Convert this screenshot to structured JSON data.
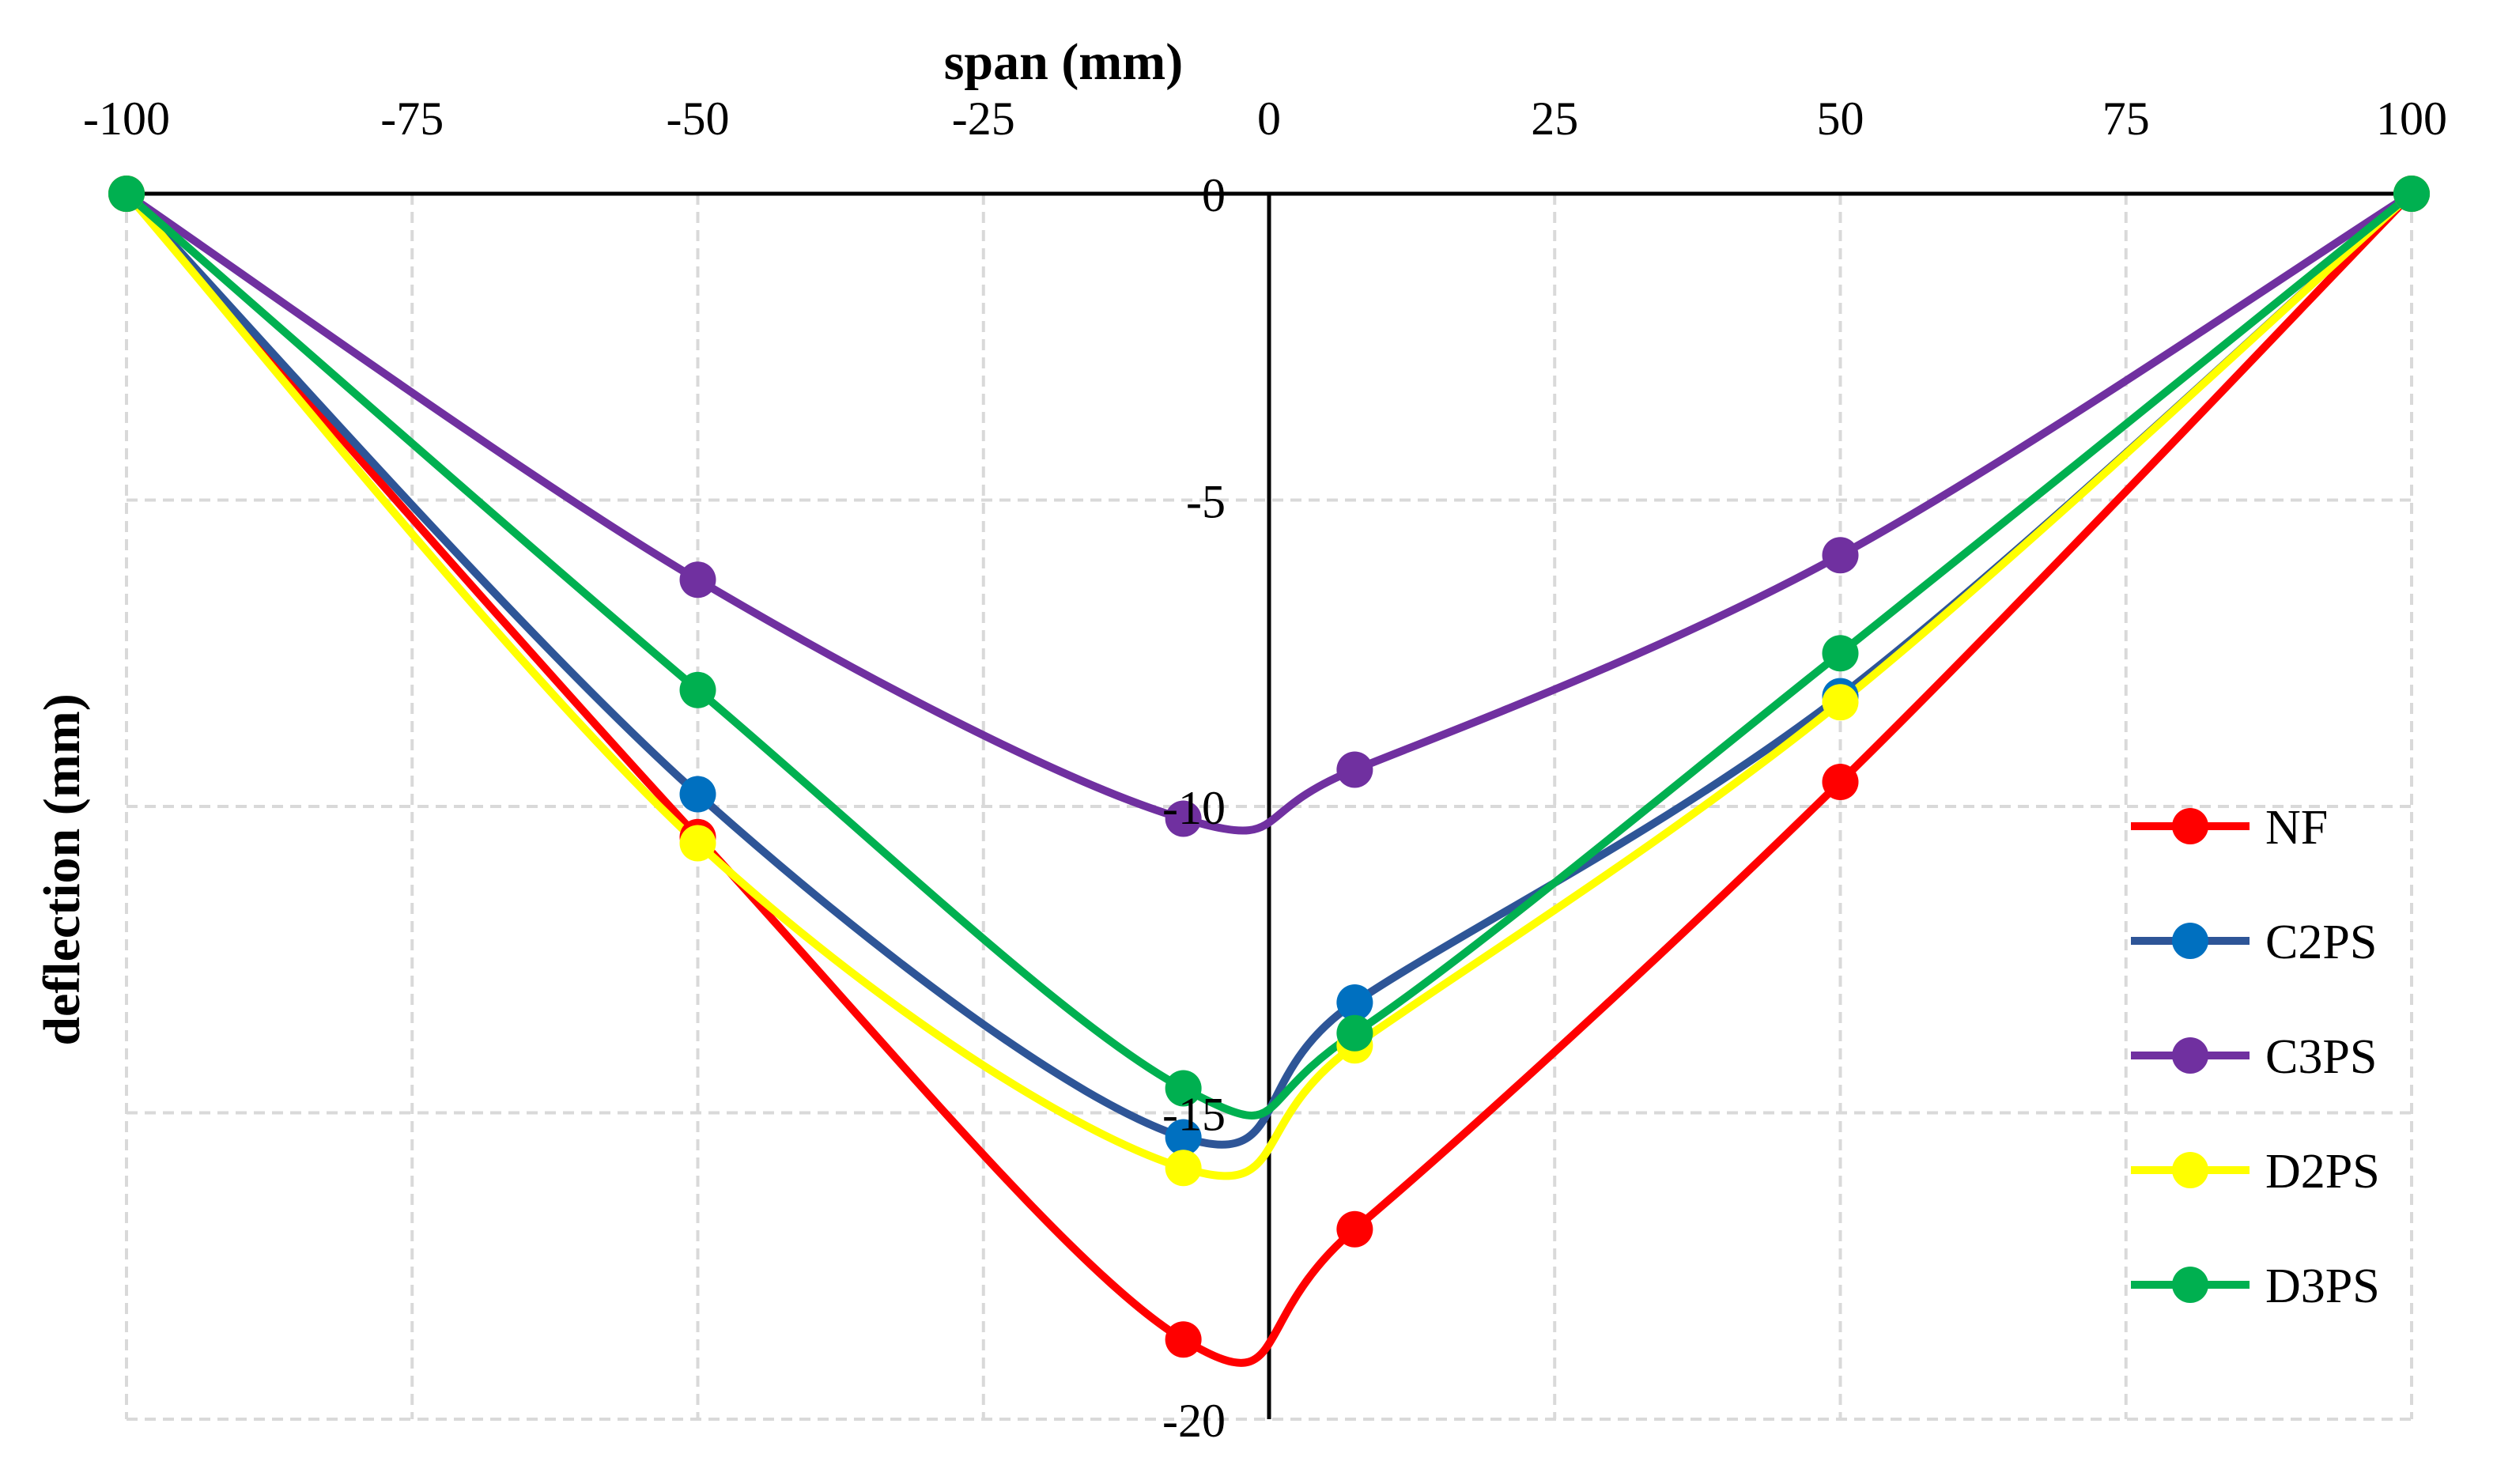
{
  "chart_data": {
    "type": "line",
    "title": "",
    "xlabel": "span (mm)",
    "ylabel": "deflection (mm)",
    "xlim": [
      -100,
      100
    ],
    "ylim": [
      -20,
      0
    ],
    "xticks": [
      -100,
      -75,
      -50,
      -25,
      0,
      25,
      50,
      75,
      100
    ],
    "yticks": [
      0,
      -5,
      -10,
      -15,
      -20
    ],
    "xtick_labels": [
      "-100",
      "-75",
      "-50",
      "-25",
      "0",
      "25",
      "50",
      "75",
      "100"
    ],
    "ytick_labels": [
      "0",
      "-5",
      "-10",
      "-15",
      "-20"
    ],
    "grid": true,
    "legend_position": "right",
    "x": [
      -100,
      -50,
      -7.5,
      7.5,
      50,
      100
    ],
    "series": [
      {
        "name": "NF",
        "color": "#ff0000",
        "line_color": "#ff0000",
        "values": [
          0,
          -10.5,
          -18.7,
          -16.9,
          -9.6,
          0
        ]
      },
      {
        "name": "C2PS",
        "color": "#0070c0",
        "line_color": "#2e5597",
        "values": [
          0,
          -9.8,
          -15.4,
          -13.2,
          -8.2,
          0
        ]
      },
      {
        "name": "C3PS",
        "color": "#7030a0",
        "line_color": "#7030a0",
        "values": [
          0,
          -6.3,
          -10.2,
          -9.4,
          -5.9,
          0
        ]
      },
      {
        "name": "D2PS",
        "color": "#ffff00",
        "line_color": "#ffff00",
        "values": [
          0,
          -10.6,
          -15.9,
          -13.9,
          -8.3,
          0
        ]
      },
      {
        "name": "D3PS",
        "color": "#00b050",
        "line_color": "#00b050",
        "values": [
          0,
          -8.1,
          -14.6,
          -13.7,
          -7.5,
          0
        ]
      }
    ]
  }
}
